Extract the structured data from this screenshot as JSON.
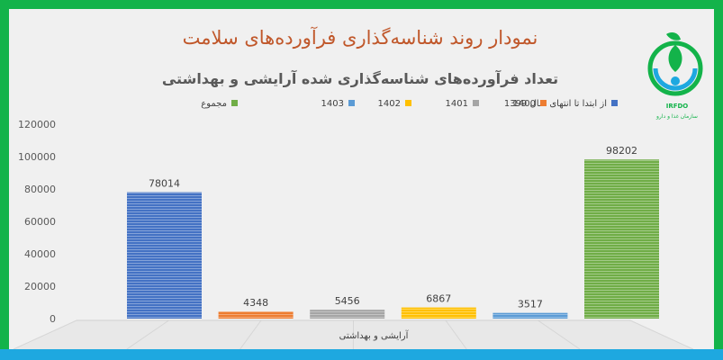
{
  "header": {
    "title": "نمودار روند شناسه‌گذاری فرآورده‌های سلامت",
    "subtitle": "تعداد فرآورده‌های شناسه‌گذاری شده آرایشی و بهداشتی"
  },
  "logo": {
    "abbr": "IRFDO",
    "org_name": "سازمان غذا و دارو"
  },
  "chart_data": {
    "type": "bar",
    "categories": [
      "آرایشی و بهداشتی"
    ],
    "series": [
      {
        "name": "از ابتدا تا انتهای سال 1399",
        "values": [
          78014
        ],
        "color": "#4472c4"
      },
      {
        "name": "1400",
        "values": [
          4348
        ],
        "color": "#ed7d31"
      },
      {
        "name": "1401",
        "values": [
          5456
        ],
        "color": "#a5a5a5"
      },
      {
        "name": "1402",
        "values": [
          6867
        ],
        "color": "#ffc000"
      },
      {
        "name": "1403",
        "values": [
          3517
        ],
        "color": "#5b9bd5"
      },
      {
        "name": "مجموع",
        "values": [
          98202
        ],
        "color": "#70ad47"
      }
    ],
    "xlabel": "آرایشی و بهداشتی",
    "ylim": [
      0,
      120000
    ],
    "yticks": [
      0,
      20000,
      40000,
      60000,
      80000,
      100000,
      120000
    ],
    "legend_position": "top",
    "grid": false
  }
}
